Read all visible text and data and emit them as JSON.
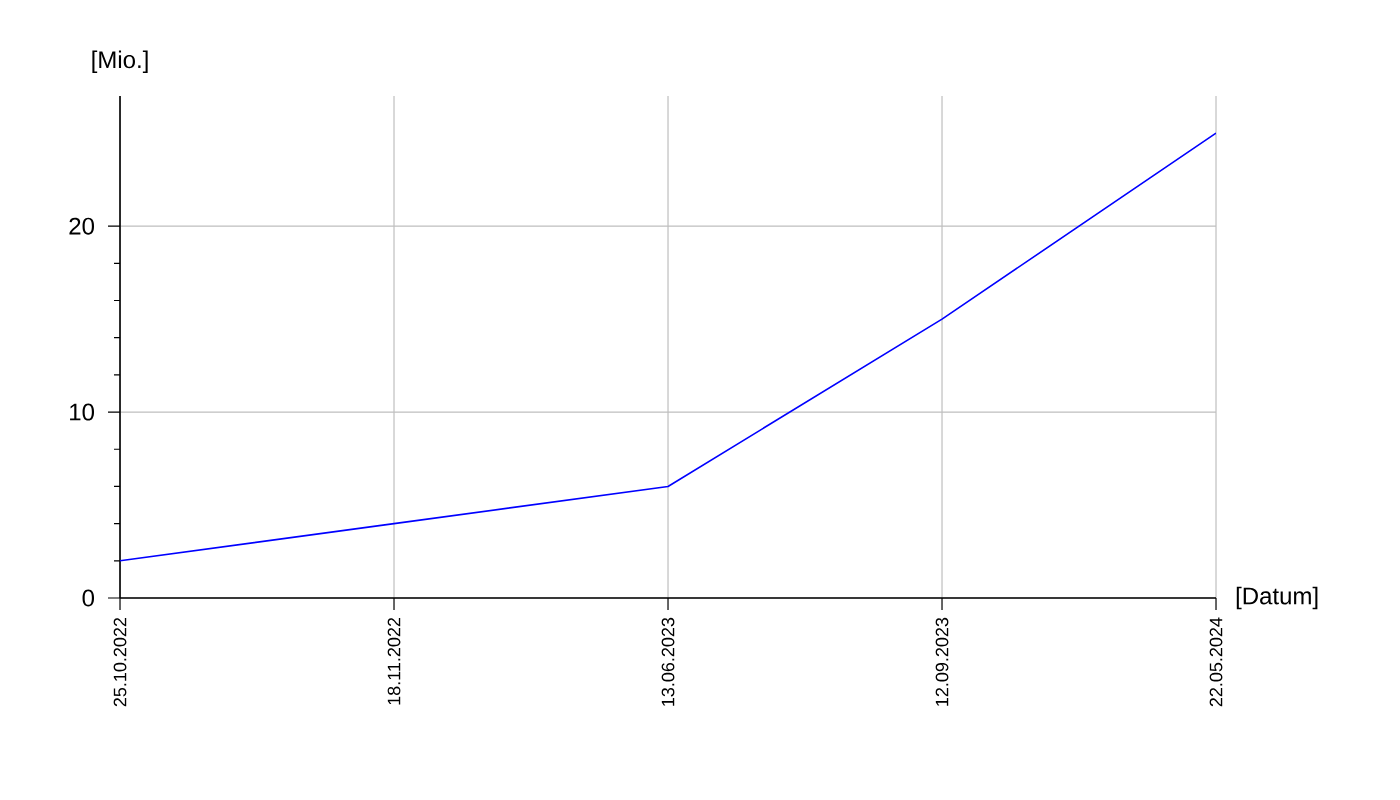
{
  "chart_data": {
    "type": "line",
    "xlabel": "[Datum]",
    "ylabel": "[Mio.]",
    "categories": [
      "25.10.2022",
      "18.11.2022",
      "13.06.2023",
      "12.09.2023",
      "22.05.2024"
    ],
    "series": [
      {
        "color": "#0000ff",
        "values": [
          2,
          4,
          6,
          15,
          25
        ]
      }
    ],
    "ylim": [
      0,
      27
    ],
    "yticks": [
      0,
      10,
      20
    ],
    "grid": true,
    "marker": "none",
    "line_style": "solid"
  }
}
